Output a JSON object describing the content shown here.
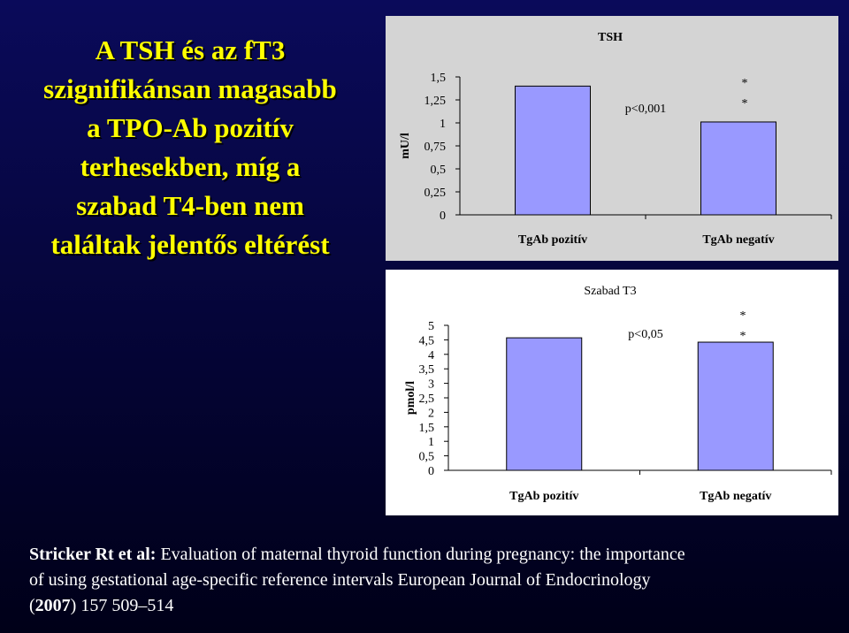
{
  "slide_title": [
    "A TSH és az fT3",
    "szignifikánsan magasabb",
    "a TPO-Ab pozitív",
    "terhesekben, míg a",
    "szabad T4-ben nem",
    "találtak jelentős eltérést"
  ],
  "chart_data": [
    {
      "type": "bar",
      "title": "TSH",
      "y_label": "mU/l",
      "categories": [
        "TgAb pozitív",
        "TgAb negatív"
      ],
      "values": [
        1.4,
        1.01
      ],
      "color": "#9999ff",
      "ylim": [
        0,
        1.5
      ],
      "yticks": [
        0,
        {
          "value": 0.25,
          "label": "0,25"
        },
        {
          "value": 0.5,
          "label": "0,5"
        },
        {
          "value": 0.75,
          "label": "0,75"
        },
        1,
        {
          "value": 1.25,
          "label": "1,25"
        },
        {
          "value": 1.5,
          "label": "1,5"
        }
      ],
      "annotations": [
        "p<0,001",
        "*",
        "*"
      ]
    },
    {
      "type": "bar",
      "title": "Szabad T3",
      "y_label": "pmol/l",
      "categories": [
        "TgAb pozitív",
        "TgAb negatív"
      ],
      "values": [
        4.57,
        4.42
      ],
      "color": "#9999ff",
      "ylim": [
        0,
        5
      ],
      "yticks": [
        0,
        {
          "value": 0.5,
          "label": "0,5"
        },
        1,
        {
          "value": 1.5,
          "label": "1,5"
        },
        2,
        {
          "value": 2.5,
          "label": "2,5"
        },
        3,
        {
          "value": 3.5,
          "label": "3,5"
        },
        4,
        {
          "value": 4.5,
          "label": "4,5"
        },
        5
      ],
      "annotations": [
        "p<0,05",
        "*",
        "*"
      ]
    }
  ],
  "citation": {
    "authors": "Stricker Rt et al:",
    "line1": "Evaluation of maternal thyroid function during pregnancy: the importance",
    "line2": "of using gestational age-specific reference intervals European Journal of Endocrinology",
    "open": "(",
    "year": "2007",
    "rest": ") 157 509–514"
  }
}
